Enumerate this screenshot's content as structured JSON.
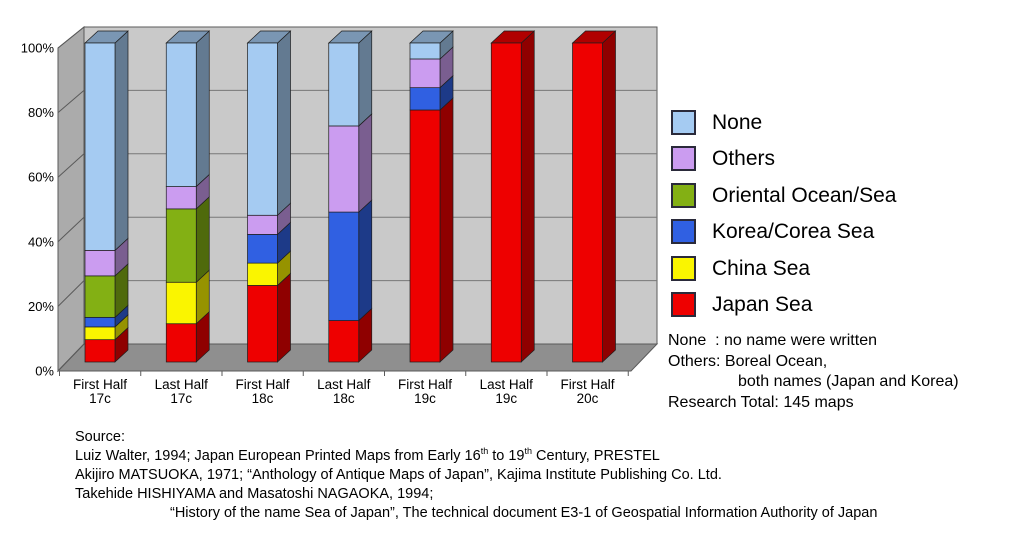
{
  "chart_data": {
    "type": "bar",
    "variant": "3d-stacked-100percent-column",
    "title": "",
    "xlabel": "",
    "ylabel": "",
    "ylim": [
      0,
      100
    ],
    "grid": true,
    "legend_position": "right",
    "stack_order": "bottom-to-top",
    "y_ticks": [
      "0%",
      "20%",
      "40%",
      "60%",
      "80%",
      "100%"
    ],
    "categories": [
      {
        "line1": "First Half",
        "line2": "17c"
      },
      {
        "line1": "Last Half",
        "line2": "17c"
      },
      {
        "line1": "First Half",
        "line2": "18c"
      },
      {
        "line1": "Last Half",
        "line2": "18c"
      },
      {
        "line1": "First Half",
        "line2": "19c"
      },
      {
        "line1": "Last Half",
        "line2": "19c"
      },
      {
        "line1": "First Half",
        "line2": "20c"
      }
    ],
    "series": [
      {
        "name": "Japan Sea",
        "color": "#EE0000",
        "values": [
          7,
          12,
          24,
          13,
          79,
          100,
          100
        ]
      },
      {
        "name": "China Sea",
        "color": "#FAF500",
        "values": [
          4,
          13,
          7,
          0,
          0,
          0,
          0
        ]
      },
      {
        "name": "Korea/Corea Sea",
        "color": "#3060E2",
        "values": [
          3,
          0,
          9,
          34,
          7,
          0,
          0
        ]
      },
      {
        "name": "Oriental Ocean/Sea",
        "color": "#83B014",
        "values": [
          13,
          23,
          0,
          0,
          0,
          0,
          0
        ]
      },
      {
        "name": "Others",
        "color": "#CB9CF0",
        "values": [
          8,
          7,
          6,
          27,
          9,
          0,
          0
        ]
      },
      {
        "name": "None",
        "color": "#A5CBF2",
        "values": [
          65,
          45,
          54,
          26,
          5,
          0,
          0
        ]
      }
    ]
  },
  "notes": {
    "lines": [
      {
        "text": "None  : no name were written",
        "indent": false
      },
      {
        "text": "Others: Boreal Ocean,",
        "indent": false
      },
      {
        "text": "both names (Japan and Korea)",
        "indent": true
      },
      {
        "text": "Research Total: 145 maps",
        "indent": false
      }
    ]
  },
  "source": {
    "heading": "Source:",
    "lines": [
      {
        "indent": false,
        "segments": [
          {
            "t": "Luiz Walter, 1994; Japan European Printed Maps from Early 16"
          },
          {
            "t": "th",
            "sup": true
          },
          {
            "t": " to 19"
          },
          {
            "t": "th",
            "sup": true
          },
          {
            "t": " Century, PRESTEL"
          }
        ]
      },
      {
        "indent": false,
        "segments": [
          {
            "t": "Akijiro MATSUOKA, 1971; “Anthology of Antique Maps of Japan”, Kajima Institute Publishing Co. Ltd."
          }
        ]
      },
      {
        "indent": false,
        "segments": [
          {
            "t": "Takehide HISHIYAMA and Masatoshi NAGAOKA, 1994;"
          }
        ]
      },
      {
        "indent": true,
        "segments": [
          {
            "t": "“History of the name Sea of Japan”, The technical document E3-1 of Geospatial Information Authority of Japan"
          }
        ]
      }
    ]
  }
}
